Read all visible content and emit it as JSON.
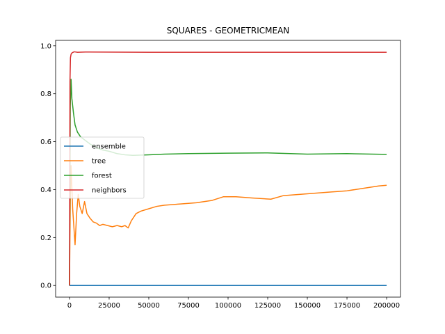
{
  "chart_data": {
    "type": "line",
    "title": "SQUARES - GEOMETRICMEAN",
    "xlabel": "",
    "ylabel": "",
    "xlim": [
      -8750,
      208750
    ],
    "ylim": [
      -0.0487,
      1.0227
    ],
    "xticks": [
      0,
      25000,
      50000,
      75000,
      100000,
      125000,
      150000,
      175000,
      200000
    ],
    "xtick_labels": [
      "0",
      "25000",
      "50000",
      "75000",
      "100000",
      "125000",
      "150000",
      "175000",
      "200000"
    ],
    "yticks": [
      0.0,
      0.2,
      0.4,
      0.6,
      0.8,
      1.0
    ],
    "ytick_labels": [
      "0.0",
      "0.2",
      "0.4",
      "0.6",
      "0.8",
      "1.0"
    ],
    "grid": false,
    "legend_position": "center-left",
    "series": [
      {
        "name": "ensemble",
        "color": "#1f77b4",
        "x": [
          0,
          200000
        ],
        "y": [
          0.0,
          0.0
        ]
      },
      {
        "name": "tree",
        "color": "#ff7f0e",
        "x": [
          0,
          500,
          1000,
          2000,
          3000,
          3500,
          4500,
          5500,
          6500,
          8000,
          9500,
          11000,
          13000,
          15000,
          17000,
          19000,
          21000,
          24000,
          27000,
          30000,
          33000,
          35000,
          37000,
          39000,
          40000,
          42000,
          45000,
          50000,
          55000,
          60000,
          70000,
          80000,
          90000,
          97000,
          105000,
          115000,
          127000,
          135000,
          145000,
          155000,
          165000,
          175000,
          185000,
          195000,
          200000
        ],
        "y": [
          0.0,
          0.35,
          0.5,
          0.32,
          0.22,
          0.17,
          0.3,
          0.38,
          0.33,
          0.3,
          0.35,
          0.3,
          0.28,
          0.265,
          0.26,
          0.25,
          0.255,
          0.25,
          0.245,
          0.25,
          0.245,
          0.25,
          0.24,
          0.27,
          0.28,
          0.3,
          0.31,
          0.32,
          0.33,
          0.335,
          0.34,
          0.345,
          0.355,
          0.37,
          0.37,
          0.365,
          0.36,
          0.375,
          0.38,
          0.385,
          0.39,
          0.395,
          0.405,
          0.415,
          0.418
        ]
      },
      {
        "name": "forest",
        "color": "#2ca02c",
        "x": [
          0,
          500,
          1000,
          1500,
          2500,
          3500,
          5000,
          7000,
          10000,
          13000,
          17000,
          21000,
          25000,
          30000,
          35000,
          40000,
          50000,
          60000,
          75000,
          100000,
          125000,
          150000,
          175000,
          200000
        ],
        "y": [
          0.0,
          0.75,
          0.86,
          0.78,
          0.72,
          0.67,
          0.64,
          0.62,
          0.605,
          0.59,
          0.575,
          0.565,
          0.56,
          0.55,
          0.545,
          0.543,
          0.545,
          0.548,
          0.55,
          0.552,
          0.553,
          0.548,
          0.55,
          0.547
        ]
      },
      {
        "name": "neighbors",
        "color": "#d62728",
        "x": [
          0,
          300,
          600,
          1000,
          1500,
          2000,
          3000,
          5000,
          10000,
          50000,
          100000,
          150000,
          200000
        ],
        "y": [
          0.0,
          0.85,
          0.95,
          0.965,
          0.97,
          0.972,
          0.975,
          0.973,
          0.974,
          0.973,
          0.973,
          0.973,
          0.973
        ]
      }
    ]
  }
}
